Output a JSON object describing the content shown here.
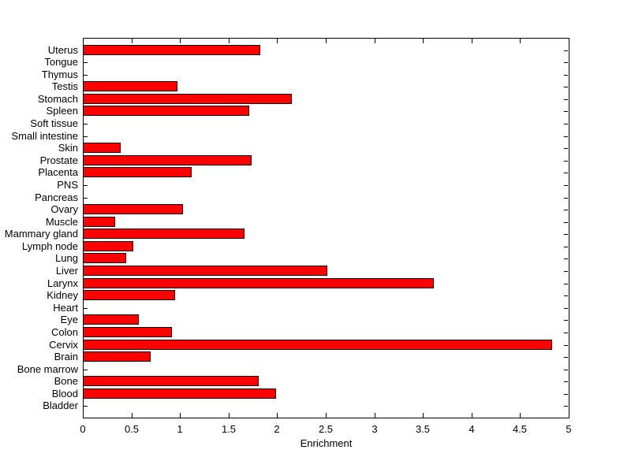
{
  "figure": {
    "background_color": "#ffffff",
    "text_color": "#000000"
  },
  "chart_data": {
    "type": "bar",
    "orientation": "horizontal",
    "title": "",
    "xlabel": "Enrichment",
    "ylabel": "",
    "xlim": [
      0,
      5
    ],
    "xticks": [
      0,
      0.5,
      1,
      1.5,
      2,
      2.5,
      3,
      3.5,
      4,
      4.5,
      5
    ],
    "xtick_labels": [
      "0",
      "0.5",
      "1",
      "1.5",
      "2",
      "2.5",
      "3",
      "3.5",
      "4",
      "4.5",
      "5"
    ],
    "grid": false,
    "legend": null,
    "bar_color": "#ff0000",
    "bar_edge_color": "#000000",
    "axis_color": "#000000",
    "categories_top_to_bottom": [
      "Uterus",
      "Tongue",
      "Thymus",
      "Testis",
      "Stomach",
      "Spleen",
      "Soft tissue",
      "Small intestine",
      "Skin",
      "Prostate",
      "Placenta",
      "PNS",
      "Pancreas",
      "Ovary",
      "Muscle",
      "Mammary gland",
      "Lymph node",
      "Lung",
      "Liver",
      "Larynx",
      "Kidney",
      "Heart",
      "Eye",
      "Colon",
      "Cervix",
      "Brain",
      "Bone marrow",
      "Bone",
      "Blood",
      "Bladder"
    ],
    "values": [
      1.83,
      0,
      0,
      0.97,
      2.15,
      1.71,
      0,
      0,
      0.39,
      1.74,
      1.12,
      0,
      0,
      1.03,
      0.33,
      1.66,
      0.52,
      0.45,
      2.52,
      3.61,
      0.95,
      0,
      0.58,
      0.92,
      4.83,
      0.7,
      0,
      1.81,
      1.99,
      0
    ]
  }
}
